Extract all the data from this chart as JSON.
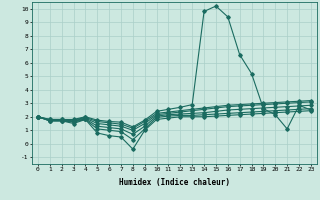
{
  "title": "",
  "xlabel": "Humidex (Indice chaleur)",
  "ylabel": "",
  "xlim": [
    -0.5,
    23.5
  ],
  "ylim": [
    -1.5,
    10.5
  ],
  "xticks": [
    0,
    1,
    2,
    3,
    4,
    5,
    6,
    7,
    8,
    9,
    10,
    11,
    12,
    13,
    14,
    15,
    16,
    17,
    18,
    19,
    20,
    21,
    22,
    23
  ],
  "yticks": [
    -1,
    0,
    1,
    2,
    3,
    4,
    5,
    6,
    7,
    8,
    9,
    10
  ],
  "bg_color": "#cce8e0",
  "line_color": "#1a6b60",
  "grid_color": "#aacfc8",
  "series": [
    [
      2.0,
      1.7,
      1.7,
      1.5,
      1.8,
      0.8,
      0.6,
      0.5,
      -0.4,
      1.0,
      1.8,
      1.9,
      2.0,
      2.0,
      2.0,
      2.05,
      2.1,
      2.15,
      2.2,
      2.25,
      2.3,
      2.35,
      2.4,
      2.45
    ],
    [
      2.0,
      1.7,
      1.7,
      1.6,
      1.8,
      1.1,
      1.0,
      0.9,
      0.3,
      1.1,
      1.95,
      2.05,
      2.1,
      2.1,
      2.15,
      2.2,
      2.25,
      2.3,
      2.35,
      2.4,
      2.45,
      2.5,
      2.55,
      2.6
    ],
    [
      2.0,
      1.7,
      1.7,
      1.65,
      1.85,
      1.3,
      1.2,
      1.1,
      0.7,
      1.3,
      2.05,
      2.15,
      2.2,
      2.25,
      2.3,
      2.4,
      2.5,
      2.55,
      2.6,
      2.65,
      2.7,
      2.75,
      2.8,
      2.85
    ],
    [
      2.0,
      1.75,
      1.75,
      1.7,
      1.9,
      1.5,
      1.4,
      1.3,
      1.0,
      1.5,
      2.15,
      2.25,
      2.35,
      2.45,
      2.55,
      2.65,
      2.75,
      2.8,
      2.85,
      2.9,
      2.95,
      3.0,
      3.05,
      3.1
    ],
    [
      2.0,
      1.8,
      1.8,
      1.75,
      1.95,
      1.65,
      1.55,
      1.45,
      1.15,
      1.65,
      2.25,
      2.35,
      2.45,
      2.55,
      2.65,
      2.75,
      2.85,
      2.9,
      2.95,
      3.0,
      3.05,
      3.1,
      3.15,
      3.2
    ],
    [
      2.0,
      1.8,
      1.8,
      1.8,
      2.0,
      1.75,
      1.65,
      1.6,
      1.25,
      1.75,
      2.4,
      2.55,
      2.7,
      2.9,
      9.8,
      10.2,
      9.4,
      6.6,
      5.2,
      2.6,
      2.15,
      1.1,
      2.85,
      2.5
    ]
  ],
  "marker": "D",
  "markersize": 1.8,
  "linewidth": 0.8
}
